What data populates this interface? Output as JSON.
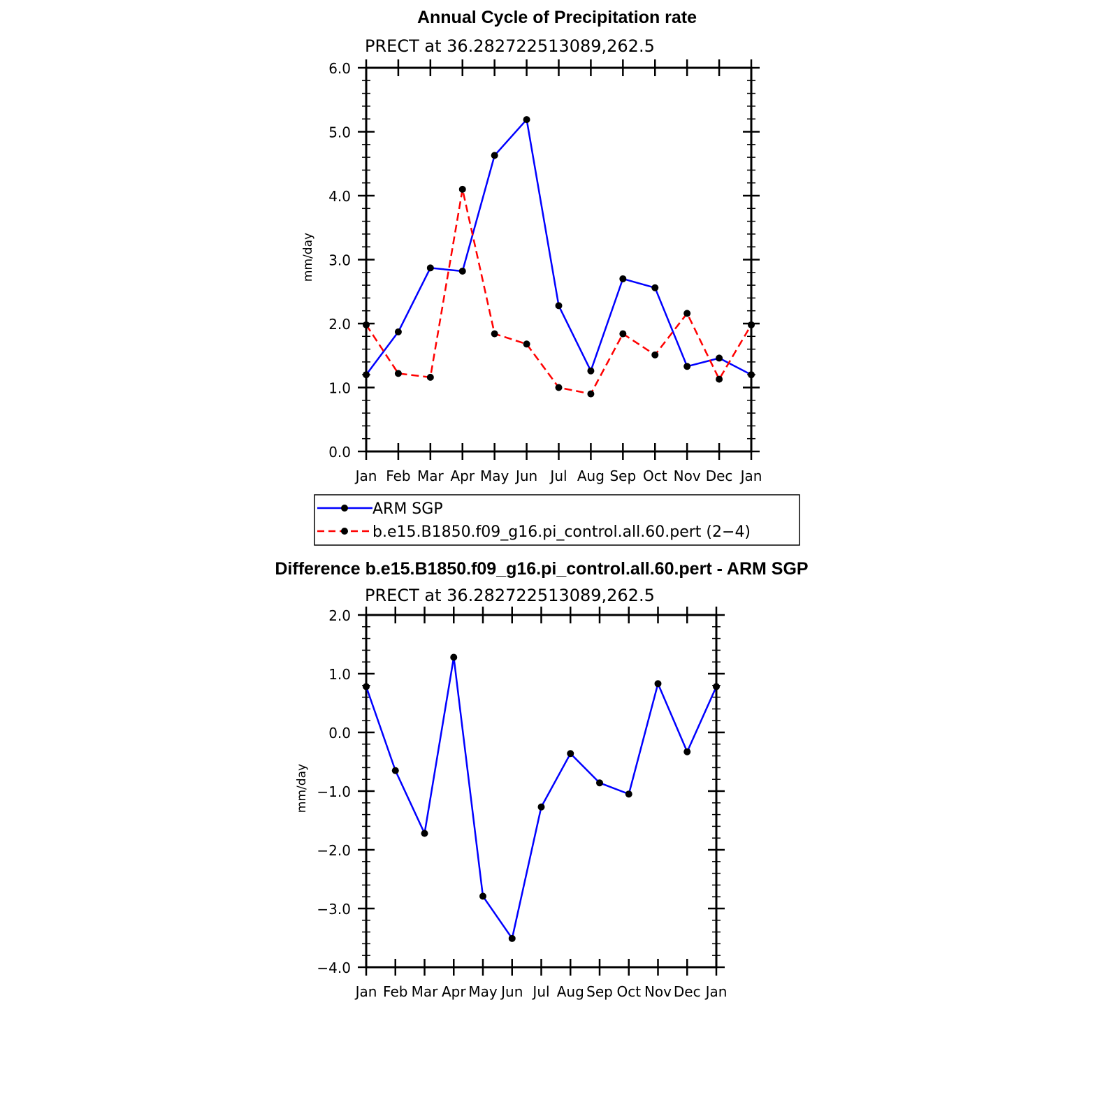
{
  "chart_data": [
    {
      "type": "line",
      "title": "Annual Cycle of Precipitation rate",
      "subtitle": "PRECT at 36.282722513089,262.5",
      "ylabel": "mm/day",
      "ylim": [
        0,
        6
      ],
      "yticks": [
        "0.0",
        "1.0",
        "2.0",
        "3.0",
        "4.0",
        "5.0",
        "6.0"
      ],
      "categories": [
        "Jan",
        "Feb",
        "Mar",
        "Apr",
        "May",
        "Jun",
        "Jul",
        "Aug",
        "Sep",
        "Oct",
        "Nov",
        "Dec",
        "Jan"
      ],
      "series": [
        {
          "name": "ARM SGP",
          "color": "#0000ff",
          "dash": "solid",
          "values": [
            1.2,
            1.87,
            2.87,
            2.82,
            4.63,
            5.19,
            2.28,
            1.26,
            2.7,
            2.56,
            1.33,
            1.46,
            1.2
          ]
        },
        {
          "name": "b.e15.B1850.f09_g16.pi_control.all.60.pert (2−4)",
          "color": "#ff0000",
          "dash": "dashed",
          "values": [
            1.98,
            1.22,
            1.16,
            4.1,
            1.84,
            1.68,
            1.0,
            0.9,
            1.84,
            1.51,
            2.16,
            1.13,
            1.98
          ]
        }
      ],
      "legend": "below"
    },
    {
      "type": "line",
      "title": "Difference b.e15.B1850.f09_g16.pi_control.all.60.pert - ARM SGP",
      "subtitle": "PRECT at 36.282722513089,262.5",
      "ylabel": "mm/day",
      "ylim": [
        -4,
        2
      ],
      "yticks": [
        "−4.0",
        "−3.0",
        "−2.0",
        "−1.0",
        "0.0",
        "1.0",
        "2.0"
      ],
      "categories": [
        "Jan",
        "Feb",
        "Mar",
        "Apr",
        "May",
        "Jun",
        "Jul",
        "Aug",
        "Sep",
        "Oct",
        "Nov",
        "Dec",
        "Jan"
      ],
      "series": [
        {
          "color": "#0000ff",
          "dash": "solid",
          "values": [
            0.78,
            -0.65,
            -1.72,
            1.28,
            -2.79,
            -3.51,
            -1.27,
            -0.36,
            -0.86,
            -1.05,
            0.83,
            -0.33,
            0.78
          ]
        }
      ]
    }
  ]
}
